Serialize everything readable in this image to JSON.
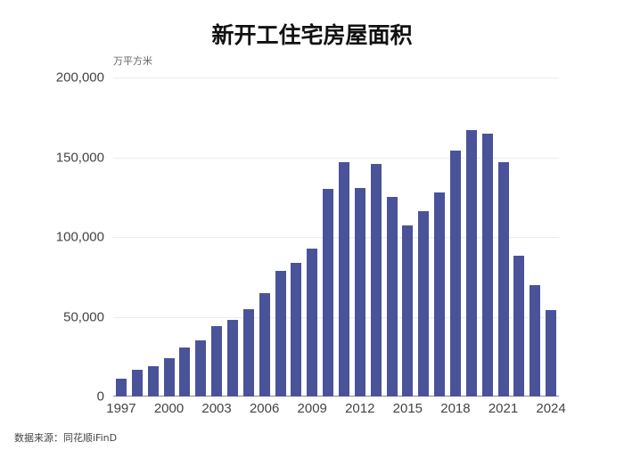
{
  "title": "新开工住宅房屋面积",
  "unit": "万平方米",
  "source": "数据来源：同花顺iFinD",
  "colors": {
    "bar": "#4a5399"
  },
  "chart_data": {
    "type": "bar",
    "title": "新开工住宅房屋面积",
    "ylabel": "万平方米",
    "xlabel": "",
    "ylim": [
      0,
      200000
    ],
    "yticks": [
      "0",
      "50,000",
      "100,000",
      "150,000",
      "200,000"
    ],
    "xticks": [
      "1997",
      "2000",
      "2003",
      "2006",
      "2009",
      "2012",
      "2015",
      "2018",
      "2021",
      "2024"
    ],
    "grid": true,
    "legend": null,
    "categories": [
      "1997",
      "1998",
      "1999",
      "2000",
      "2001",
      "2002",
      "2003",
      "2004",
      "2005",
      "2006",
      "2007",
      "2008",
      "2009",
      "2010",
      "2011",
      "2012",
      "2013",
      "2014",
      "2015",
      "2016",
      "2017",
      "2018",
      "2019",
      "2020",
      "2021",
      "2022",
      "2023",
      "2024"
    ],
    "values": [
      11000,
      17000,
      19000,
      24000,
      31000,
      35000,
      44000,
      48000,
      55000,
      65000,
      79000,
      84000,
      93000,
      130000,
      147000,
      131000,
      146000,
      125000,
      107000,
      116000,
      128000,
      154000,
      167000,
      165000,
      147000,
      88000,
      70000,
      54000
    ]
  },
  "source_label": "数据来源：同花顺iFinD"
}
